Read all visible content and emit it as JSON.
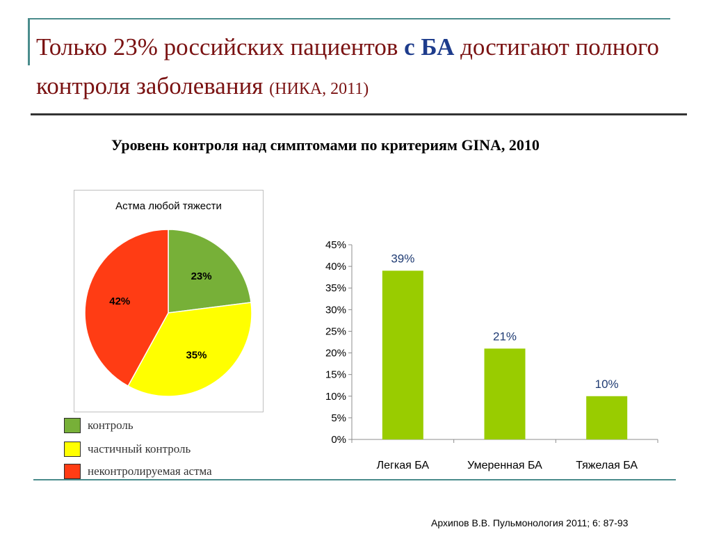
{
  "header": {
    "title_part1": "Только 23% российских пациентов ",
    "title_hl": "с БА",
    "title_part2": " достигают полного контроля заболевания ",
    "title_small": "(НИКА, 2011)"
  },
  "subtitle": "Уровень контроля над симптомами по критериям GINA, 2010",
  "legend": {
    "items": [
      {
        "label": "контроль",
        "color": "#77b038"
      },
      {
        "label": "частичный контроль",
        "color": "#ffff00"
      },
      {
        "label": "неконтролируемая астма",
        "color": "#ff3c14"
      }
    ]
  },
  "chart_data": [
    {
      "type": "pie",
      "title": "Астма любой тяжести",
      "slices": [
        {
          "label": "контроль",
          "value": 23,
          "display": "23%",
          "color": "#77b038"
        },
        {
          "label": "частичный контроль",
          "value": 35,
          "display": "35%",
          "color": "#ffff00"
        },
        {
          "label": "неконтролируемая астма",
          "value": 42,
          "display": "42%",
          "color": "#ff3c14"
        }
      ]
    },
    {
      "type": "bar",
      "categories": [
        "Легкая БА",
        "Умеренная  БА",
        "Тяжелая БА"
      ],
      "values": [
        39,
        21,
        10
      ],
      "value_labels": [
        "39%",
        "21%",
        "10%"
      ],
      "ylim": [
        0,
        45
      ],
      "yticks": [
        "0%",
        "5%",
        "10%",
        "15%",
        "20%",
        "25%",
        "30%",
        "35%",
        "40%",
        "45%"
      ],
      "bar_color": "#99cc00",
      "label_color": "#1f3b73"
    }
  ],
  "citation": "Архипов В.В. Пульмонология 2011; 6: 87-93"
}
